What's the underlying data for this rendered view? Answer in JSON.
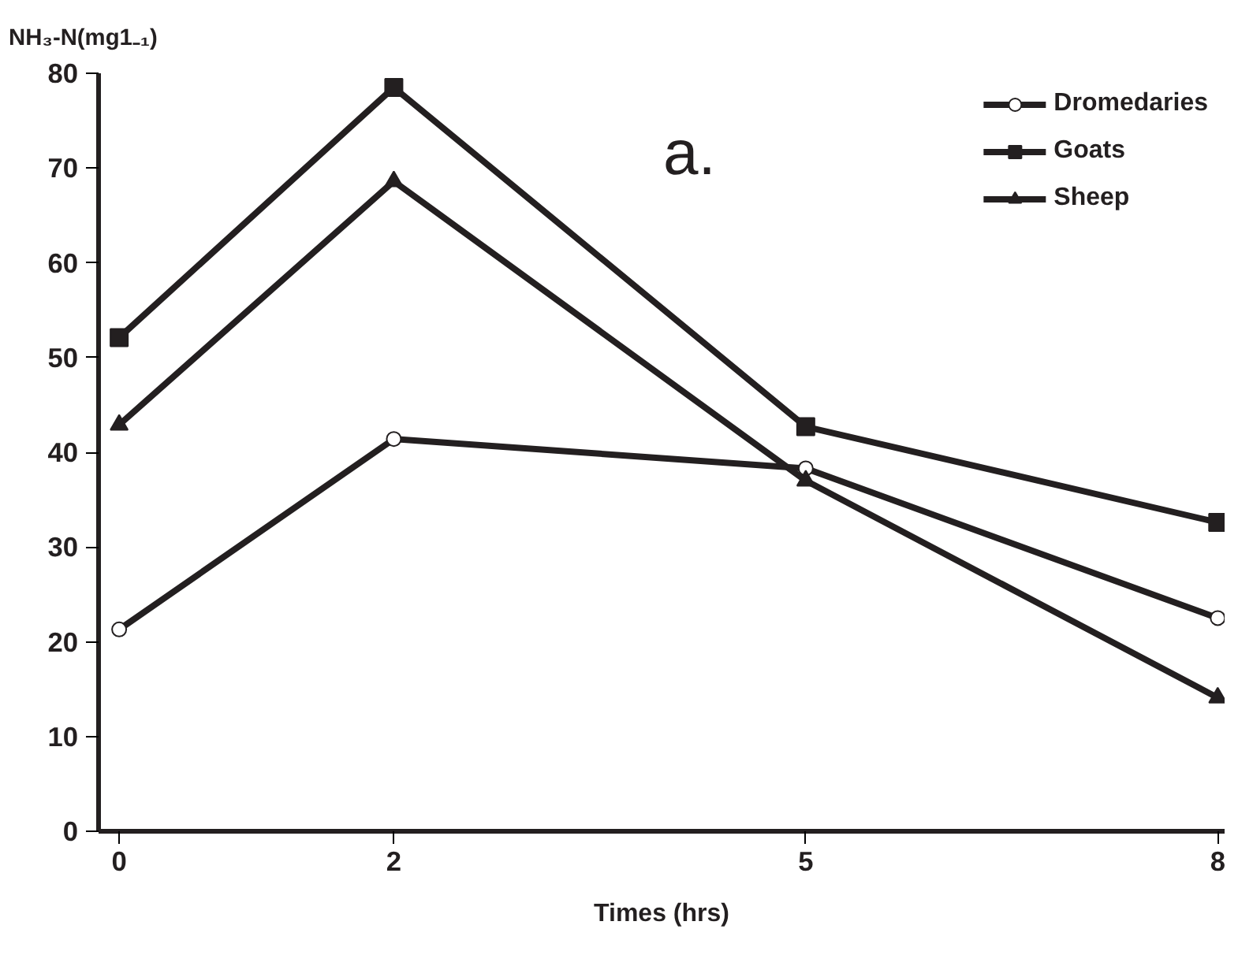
{
  "chart_data": {
    "type": "line",
    "ylabel": "NH₃-N(mg1₋₁)",
    "xlabel": "Times (hrs)",
    "annotations": [
      "a."
    ],
    "x": [
      0,
      2,
      5,
      8
    ],
    "xlim": [
      -0.15,
      8.05
    ],
    "xticks": [
      0,
      2,
      5,
      8
    ],
    "ylim": [
      0,
      80
    ],
    "yticks": [
      0,
      10,
      20,
      30,
      40,
      50,
      60,
      70,
      80
    ],
    "grid": false,
    "legend": "top right",
    "line_style": "solid",
    "series": [
      {
        "name": "Dromedaries",
        "color": "#231f20",
        "marker": "circle",
        "values": [
          21.3,
          41.4,
          38.3,
          22.5
        ]
      },
      {
        "name": "Goats",
        "color": "#231f20",
        "marker": "square",
        "values": [
          52.1,
          78.5,
          42.7,
          32.6
        ]
      },
      {
        "name": "Sheep",
        "color": "#231f20",
        "marker": "triangle",
        "values": [
          42.9,
          68.6,
          37.0,
          14.1
        ]
      }
    ]
  }
}
